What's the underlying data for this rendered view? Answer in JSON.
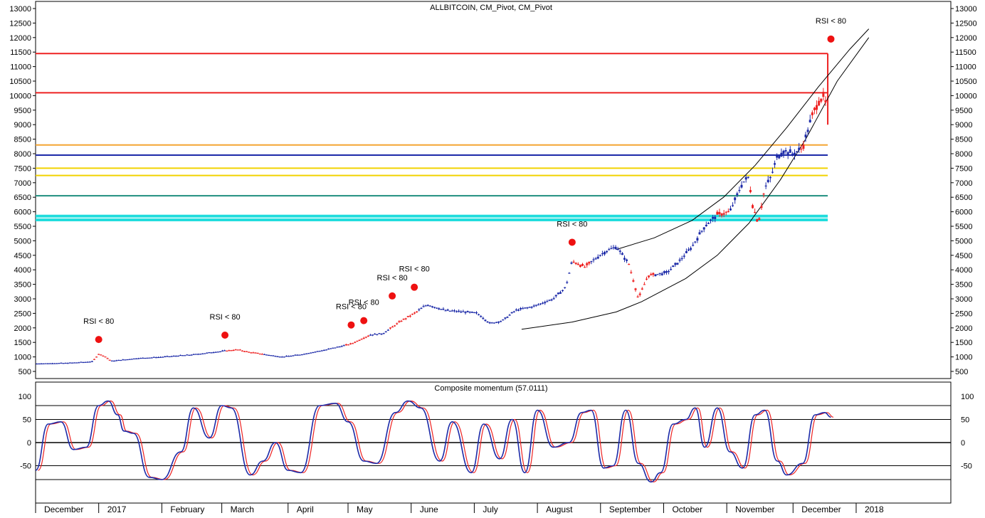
{
  "chart_data": [
    {
      "type": "candlestick",
      "title": "ALLBITCOIN, CM_Pivot, CM_Pivot",
      "ylim": [
        500,
        13000
      ],
      "y_ticks": [
        13000,
        12500,
        12000,
        11500,
        11000,
        10500,
        10000,
        9500,
        9000,
        8500,
        8000,
        7500,
        7000,
        6500,
        6000,
        5500,
        5000,
        4500,
        4000,
        3500,
        3000,
        2500,
        2000,
        1500,
        1000,
        500
      ],
      "x_labels": [
        "December",
        "2017",
        "February",
        "March",
        "April",
        "May",
        "June",
        "July",
        "August",
        "September",
        "October",
        "November",
        "December",
        "2018"
      ],
      "x_range": [
        0,
        14.5
      ],
      "x_label_positions": [
        0,
        1.0,
        2.0,
        2.95,
        4.0,
        4.95,
        5.95,
        6.95,
        7.95,
        8.95,
        9.95,
        10.95,
        12.0,
        13.0
      ],
      "price_path": [
        [
          0,
          770
        ],
        [
          0.5,
          790
        ],
        [
          0.9,
          840
        ],
        [
          1.0,
          1100
        ],
        [
          1.1,
          1020
        ],
        [
          1.2,
          860
        ],
        [
          1.6,
          950
        ],
        [
          2.0,
          1000
        ],
        [
          2.5,
          1080
        ],
        [
          3.0,
          1210
        ],
        [
          3.2,
          1250
        ],
        [
          3.4,
          1160
        ],
        [
          3.6,
          1100
        ],
        [
          3.9,
          1000
        ],
        [
          4.2,
          1080
        ],
        [
          4.6,
          1250
        ],
        [
          5.0,
          1450
        ],
        [
          5.3,
          1760
        ],
        [
          5.5,
          1800
        ],
        [
          5.8,
          2250
        ],
        [
          6.0,
          2500
        ],
        [
          6.2,
          2800
        ],
        [
          6.5,
          2600
        ],
        [
          6.8,
          2550
        ],
        [
          7.0,
          2500
        ],
        [
          7.2,
          2150
        ],
        [
          7.4,
          2250
        ],
        [
          7.6,
          2600
        ],
        [
          7.9,
          2750
        ],
        [
          8.2,
          3000
        ],
        [
          8.4,
          3400
        ],
        [
          8.5,
          4300
        ],
        [
          8.7,
          4100
        ],
        [
          9.0,
          4600
        ],
        [
          9.2,
          4800
        ],
        [
          9.4,
          4200
        ],
        [
          9.55,
          3000
        ],
        [
          9.7,
          3800
        ],
        [
          10.0,
          3900
        ],
        [
          10.2,
          4300
        ],
        [
          10.4,
          4800
        ],
        [
          10.6,
          5500
        ],
        [
          10.8,
          5900
        ],
        [
          11.0,
          6000
        ],
        [
          11.2,
          7000
        ],
        [
          11.3,
          7200
        ],
        [
          11.35,
          6300
        ],
        [
          11.45,
          5600
        ],
        [
          11.55,
          6800
        ],
        [
          11.65,
          7200
        ],
        [
          11.75,
          7900
        ],
        [
          11.85,
          8100
        ],
        [
          12.0,
          8000
        ],
        [
          12.15,
          8200
        ],
        [
          12.3,
          9300
        ],
        [
          12.4,
          9800
        ],
        [
          12.5,
          10000
        ],
        [
          12.55,
          9200
        ]
      ],
      "red_segments": [
        [
          0.9,
          1.2
        ],
        [
          3.0,
          3.6
        ],
        [
          4.9,
          5.3
        ],
        [
          5.6,
          6.05
        ],
        [
          8.5,
          8.8
        ],
        [
          9.4,
          9.8
        ],
        [
          10.8,
          11.0
        ],
        [
          11.3,
          11.55
        ],
        [
          12.1,
          12.2
        ],
        [
          12.3,
          12.55
        ]
      ],
      "signals": [
        {
          "x": 1.0,
          "y": 1600,
          "label": "RSI < 80"
        },
        {
          "x": 3.0,
          "y": 1750,
          "label": "RSI < 80"
        },
        {
          "x": 5.0,
          "y": 2100,
          "label": "RSI < 80"
        },
        {
          "x": 5.2,
          "y": 2250,
          "label": "RSI < 80"
        },
        {
          "x": 5.65,
          "y": 3100,
          "label": "RSI < 80"
        },
        {
          "x": 6.0,
          "y": 3400,
          "label": "RSI < 80"
        },
        {
          "x": 8.5,
          "y": 4950,
          "label": "RSI < 80"
        },
        {
          "x": 12.6,
          "y": 11950,
          "label": "RSI < 80"
        }
      ],
      "pivot_levels": [
        {
          "y": 11450,
          "color": "#ee2222"
        },
        {
          "y": 10100,
          "color": "#ee2222"
        },
        {
          "y": 8300,
          "color": "#f4a533"
        },
        {
          "y": 7950,
          "color": "#1c2aa8"
        },
        {
          "y": 7500,
          "color": "#f2d200"
        },
        {
          "y": 7250,
          "color": "#f2d200"
        },
        {
          "y": 6550,
          "color": "#1f8f7f"
        },
        {
          "y": 5850,
          "color": "#22dddd"
        },
        {
          "y": 5720,
          "color": "#22dddd"
        }
      ],
      "pivot_levels_x_range": [
        0,
        12.55
      ],
      "vertical_spike": {
        "x": 12.55,
        "y_from": 11450,
        "y_to": 9000,
        "color": "#ee2222"
      },
      "curves": [
        {
          "points": [
            [
              7.7,
              1950
            ],
            [
              8.5,
              2200
            ],
            [
              9.2,
              2550
            ],
            [
              9.6,
              2900
            ],
            [
              10.3,
              3700
            ],
            [
              10.8,
              4500
            ],
            [
              11.3,
              5600
            ],
            [
              11.8,
              7100
            ],
            [
              12.2,
              8500
            ],
            [
              12.7,
              10500
            ],
            [
              13.2,
              12000
            ]
          ]
        },
        {
          "points": [
            [
              9.2,
              4700
            ],
            [
              9.8,
              5100
            ],
            [
              10.4,
              5700
            ],
            [
              10.9,
              6500
            ],
            [
              11.4,
              7600
            ],
            [
              11.9,
              8900
            ],
            [
              12.4,
              10300
            ],
            [
              12.9,
              11600
            ],
            [
              13.2,
              12300
            ]
          ]
        }
      ],
      "colors": {
        "up": "#1c2aa8",
        "down": "#ee2222"
      }
    },
    {
      "type": "line",
      "title": "Composite momentum (57.0111)",
      "ylim": [
        -100,
        100
      ],
      "y_ticks": [
        100,
        50,
        0,
        -50
      ],
      "ref_lines": [
        80,
        50,
        0,
        -50,
        -80
      ],
      "x_range": [
        0,
        14.5
      ],
      "momentum": [
        [
          0,
          -60
        ],
        [
          0.2,
          40
        ],
        [
          0.4,
          45
        ],
        [
          0.6,
          -15
        ],
        [
          0.8,
          -10
        ],
        [
          1.0,
          80
        ],
        [
          1.15,
          90
        ],
        [
          1.3,
          60
        ],
        [
          1.4,
          25
        ],
        [
          1.55,
          20
        ],
        [
          1.8,
          -75
        ],
        [
          2.0,
          -80
        ],
        [
          2.3,
          -20
        ],
        [
          2.5,
          75
        ],
        [
          2.75,
          10
        ],
        [
          2.95,
          80
        ],
        [
          3.1,
          75
        ],
        [
          3.4,
          -70
        ],
        [
          3.6,
          -40
        ],
        [
          3.8,
          0
        ],
        [
          4.0,
          -60
        ],
        [
          4.2,
          -65
        ],
        [
          4.5,
          80
        ],
        [
          4.75,
          85
        ],
        [
          4.95,
          45
        ],
        [
          5.2,
          -40
        ],
        [
          5.4,
          -45
        ],
        [
          5.7,
          65
        ],
        [
          5.9,
          90
        ],
        [
          6.1,
          75
        ],
        [
          6.4,
          -40
        ],
        [
          6.6,
          45
        ],
        [
          6.9,
          -65
        ],
        [
          7.1,
          40
        ],
        [
          7.35,
          -35
        ],
        [
          7.55,
          50
        ],
        [
          7.75,
          -65
        ],
        [
          7.95,
          70
        ],
        [
          8.2,
          -10
        ],
        [
          8.45,
          0
        ],
        [
          8.65,
          65
        ],
        [
          8.8,
          70
        ],
        [
          9.0,
          -55
        ],
        [
          9.15,
          -50
        ],
        [
          9.35,
          70
        ],
        [
          9.55,
          -45
        ],
        [
          9.75,
          -85
        ],
        [
          9.9,
          -65
        ],
        [
          10.1,
          40
        ],
        [
          10.3,
          50
        ],
        [
          10.45,
          75
        ],
        [
          10.6,
          -10
        ],
        [
          10.8,
          75
        ],
        [
          11.0,
          -20
        ],
        [
          11.2,
          -55
        ],
        [
          11.4,
          60
        ],
        [
          11.55,
          70
        ],
        [
          11.75,
          -40
        ],
        [
          11.9,
          -70
        ],
        [
          12.15,
          -45
        ],
        [
          12.35,
          60
        ],
        [
          12.5,
          65
        ],
        [
          12.6,
          55
        ]
      ],
      "colors": {
        "fast": "#1c2aa8",
        "slow": "#ee2222",
        "ref": "#000000"
      }
    }
  ],
  "labels": {
    "signal_text": "RSI < 80"
  }
}
